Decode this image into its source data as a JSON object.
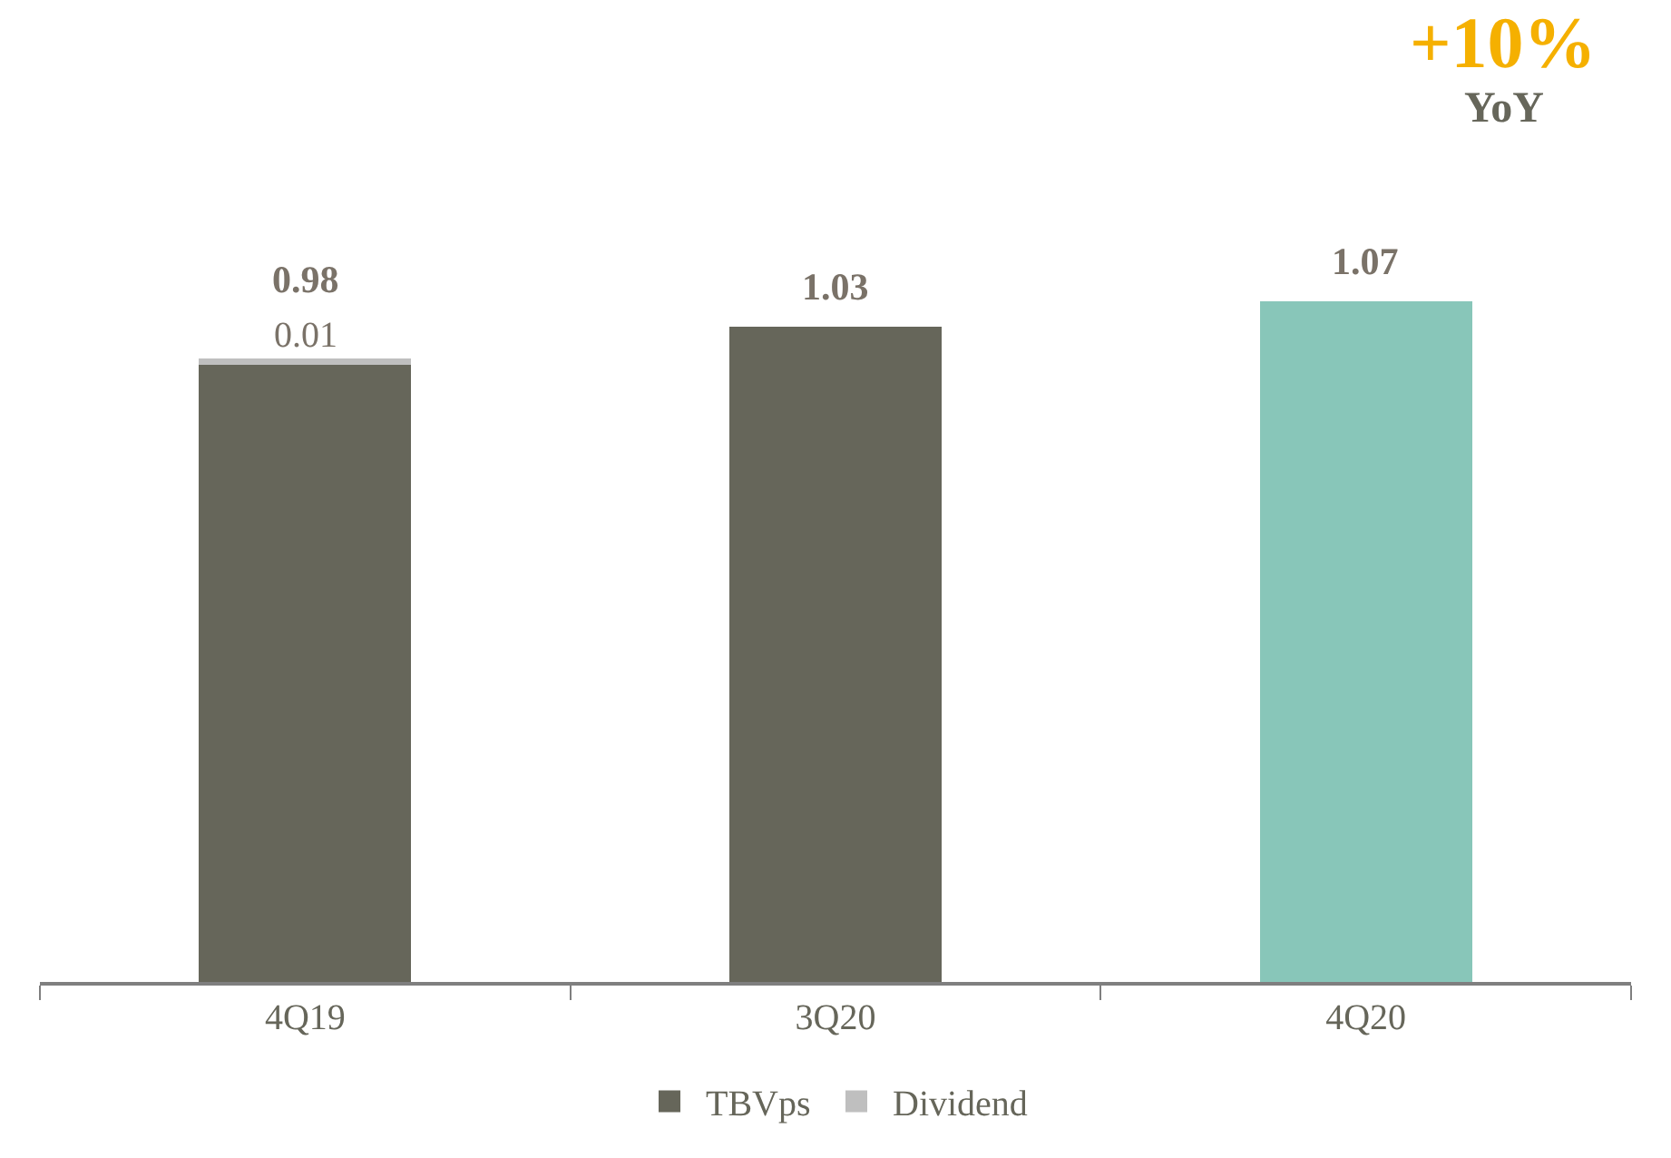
{
  "chart_data": {
    "type": "bar",
    "stacked": true,
    "categories": [
      "4Q19",
      "3Q20",
      "4Q20"
    ],
    "series": [
      {
        "name": "TBVps",
        "color": "#66665a",
        "colors": [
          null,
          null,
          "#88c6b9"
        ],
        "values": [
          0.97,
          1.03,
          1.07
        ],
        "value_labels": [
          null,
          "1.03",
          "1.07"
        ]
      },
      {
        "name": "Dividend",
        "color": "#bfbfbf",
        "values": [
          0.01,
          null,
          null
        ],
        "value_labels": [
          "0.01",
          null,
          null
        ]
      }
    ],
    "totals": [
      "0.98",
      null,
      null
    ],
    "tick_labels": "x",
    "legend": "bottom",
    "annotations": [
      "+10%",
      "YoY"
    ]
  }
}
